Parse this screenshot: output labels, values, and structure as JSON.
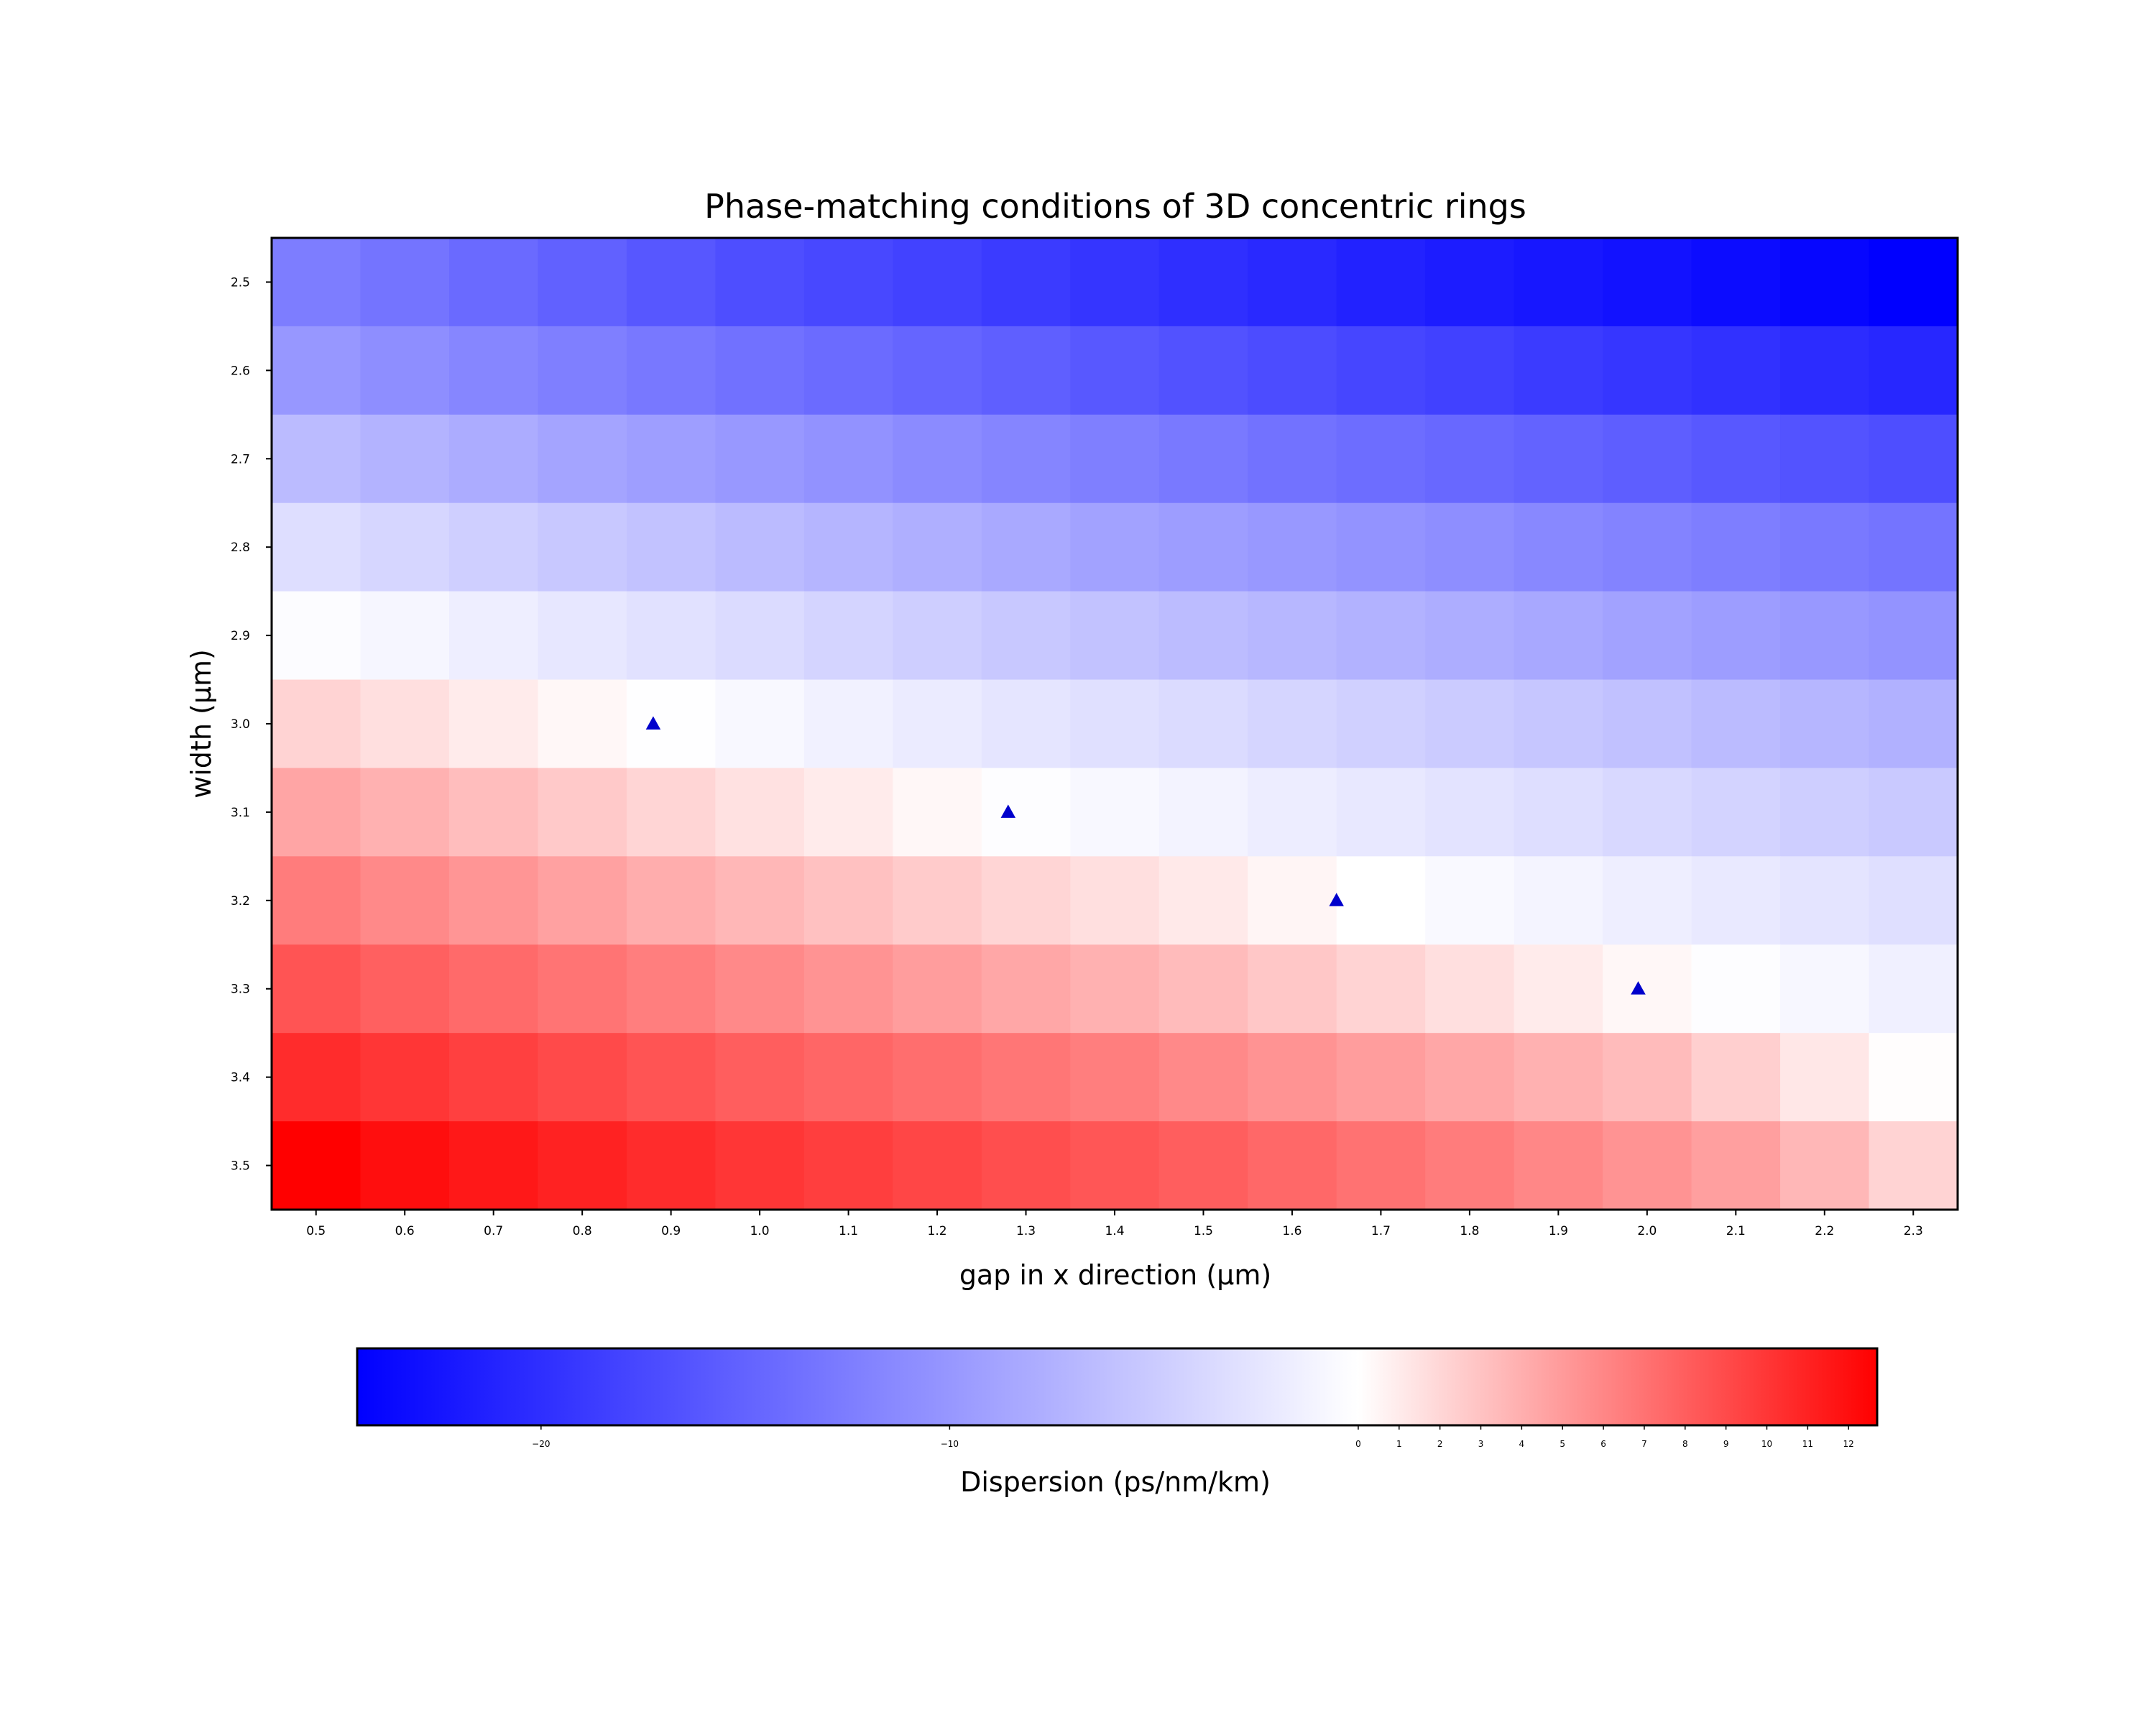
{
  "chart_data": {
    "type": "heatmap",
    "title": "Phase-matching conditions of 3D concentric rings",
    "xlabel": "gap in x direction (μm)",
    "ylabel": "width (μm)",
    "colorbar_label": "Dispersion (ps/nm/km)",
    "colormap": "bwr",
    "colormap_colors": {
      "low": "#0000ff",
      "mid": "#ffffff",
      "high": "#ff0000"
    },
    "vmin": -24.5,
    "vcenter": 0,
    "vmax": 12.7,
    "x": [
      "0.5",
      "0.6",
      "0.7",
      "0.8",
      "0.9",
      "1.0",
      "1.1",
      "1.2",
      "1.3",
      "1.4",
      "1.5",
      "1.6",
      "1.7",
      "1.8",
      "1.9",
      "2.0",
      "2.1",
      "2.2",
      "2.3"
    ],
    "y": [
      "2.5",
      "2.6",
      "2.7",
      "2.8",
      "2.9",
      "3.0",
      "3.1",
      "3.2",
      "3.3",
      "3.4",
      "3.5"
    ],
    "values": [
      [
        -12.5,
        -13.4,
        -14.3,
        -15.2,
        -16.1,
        -17.0,
        -17.6,
        -18.2,
        -18.8,
        -19.4,
        -20.0,
        -20.6,
        -21.2,
        -21.8,
        -22.3,
        -22.8,
        -23.3,
        -23.9,
        -24.5
      ],
      [
        -10.0,
        -10.9,
        -11.6,
        -12.3,
        -13.0,
        -13.6,
        -14.2,
        -14.8,
        -15.4,
        -16.0,
        -16.6,
        -17.2,
        -17.8,
        -18.3,
        -18.8,
        -19.3,
        -19.8,
        -20.3,
        -20.8
      ],
      [
        -6.5,
        -7.3,
        -8.0,
        -8.7,
        -9.3,
        -9.9,
        -10.5,
        -11.1,
        -11.7,
        -12.3,
        -12.9,
        -13.5,
        -14.0,
        -14.5,
        -15.0,
        -15.5,
        -16.0,
        -16.5,
        -17.0
      ],
      [
        -3.2,
        -3.9,
        -4.6,
        -5.3,
        -5.9,
        -6.5,
        -7.1,
        -7.7,
        -8.3,
        -8.9,
        -9.4,
        -9.9,
        -10.4,
        -10.9,
        -11.4,
        -11.9,
        -12.4,
        -12.9,
        -13.4
      ],
      [
        -0.3,
        -0.9,
        -1.6,
        -2.3,
        -2.9,
        -3.5,
        -4.1,
        -4.7,
        -5.3,
        -5.9,
        -6.4,
        -6.9,
        -7.4,
        -7.9,
        -8.4,
        -8.9,
        -9.4,
        -9.9,
        -10.4
      ],
      [
        2.2,
        1.6,
        1.0,
        0.4,
        -0.1,
        -0.7,
        -1.3,
        -1.9,
        -2.5,
        -3.0,
        -3.5,
        -4.0,
        -4.5,
        -5.0,
        -5.5,
        -6.0,
        -6.5,
        -7.0,
        -7.5
      ],
      [
        4.5,
        3.9,
        3.3,
        2.7,
        2.1,
        1.5,
        1.0,
        0.4,
        -0.2,
        -0.7,
        -1.2,
        -1.7,
        -2.2,
        -2.7,
        -3.2,
        -3.7,
        -4.2,
        -4.7,
        -5.2
      ],
      [
        6.5,
        5.9,
        5.3,
        4.7,
        4.1,
        3.6,
        3.1,
        2.6,
        2.1,
        1.6,
        1.1,
        0.5,
        0.0,
        -0.6,
        -1.1,
        -1.6,
        -2.1,
        -2.6,
        -3.1
      ],
      [
        8.5,
        7.9,
        7.4,
        6.9,
        6.4,
        5.9,
        5.4,
        4.9,
        4.4,
        3.9,
        3.4,
        2.8,
        2.2,
        1.6,
        1.0,
        0.4,
        -0.2,
        -0.8,
        -1.4
      ],
      [
        10.5,
        10.0,
        9.5,
        9.0,
        8.5,
        8.0,
        7.6,
        7.2,
        6.8,
        6.4,
        5.9,
        5.4,
        4.9,
        4.4,
        3.9,
        3.4,
        2.4,
        1.2,
        0.1
      ],
      [
        12.7,
        12.0,
        11.5,
        11.0,
        10.5,
        10.0,
        9.6,
        9.2,
        8.8,
        8.4,
        8.0,
        7.5,
        7.0,
        6.5,
        6.0,
        5.4,
        4.8,
        3.6,
        2.2
      ]
    ],
    "markers": {
      "shape": "triangle",
      "color": "#0000cc",
      "points": [
        {
          "x": 0.88,
          "y": 3.0
        },
        {
          "x": 1.28,
          "y": 3.1
        },
        {
          "x": 1.65,
          "y": 3.2
        },
        {
          "x": 1.99,
          "y": 3.3
        }
      ]
    },
    "colorbar_ticks": [
      {
        "value": -20,
        "label": "−20"
      },
      {
        "value": -10,
        "label": "−10"
      },
      {
        "value": 0,
        "label": "0"
      },
      {
        "value": 1,
        "label": "1"
      },
      {
        "value": 2,
        "label": "2"
      },
      {
        "value": 3,
        "label": "3"
      },
      {
        "value": 4,
        "label": "4"
      },
      {
        "value": 5,
        "label": "5"
      },
      {
        "value": 6,
        "label": "6"
      },
      {
        "value": 7,
        "label": "7"
      },
      {
        "value": 8,
        "label": "8"
      },
      {
        "value": 9,
        "label": "9"
      },
      {
        "value": 10,
        "label": "10"
      },
      {
        "value": 11,
        "label": "11"
      },
      {
        "value": 12,
        "label": "12"
      }
    ]
  }
}
